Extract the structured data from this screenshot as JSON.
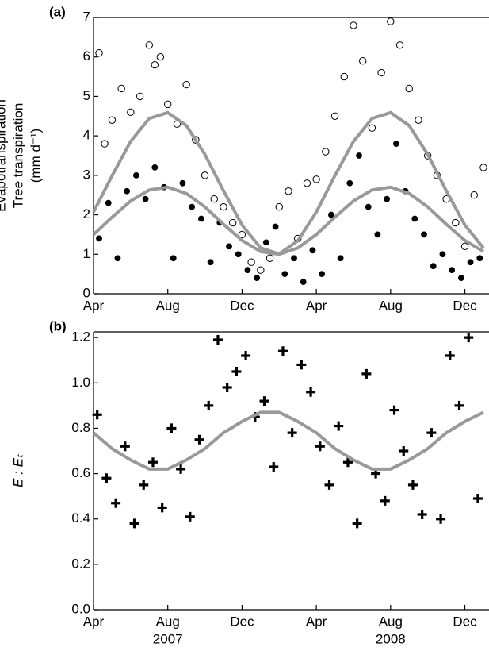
{
  "chart_data": [
    {
      "type": "scatter",
      "panel_label": "(a)",
      "y_label_lines": [
        "Evapotranspiration",
        "Tree transpiration",
        "(mm d⁻¹)"
      ],
      "xlim": [
        0,
        21.3
      ],
      "ylim": [
        0,
        7
      ],
      "xticks": [
        {
          "value": 0,
          "label": "Apr"
        },
        {
          "value": 4,
          "label": "Aug"
        },
        {
          "value": 8,
          "label": "Dec"
        },
        {
          "value": 12,
          "label": "Apr"
        },
        {
          "value": 16,
          "label": "Aug"
        },
        {
          "value": 20,
          "label": "Dec"
        }
      ],
      "yticks": [
        0,
        1,
        2,
        3,
        4,
        5,
        6,
        7
      ],
      "series": [
        {
          "marker": "open-circle",
          "color": "#000000",
          "x": [
            0.3,
            0.6,
            1.0,
            1.5,
            2.0,
            2.5,
            3.0,
            3.3,
            3.6,
            4.0,
            4.5,
            5.0,
            5.5,
            6.0,
            6.5,
            7.0,
            7.5,
            8.0,
            8.5,
            9.0,
            9.5,
            10.0,
            10.5,
            11.0,
            11.5,
            12.0,
            12.5,
            13.0,
            13.5,
            14.0,
            14.5,
            15.0,
            15.5,
            16.0,
            16.5,
            17.0,
            17.5,
            18.0,
            18.5,
            19.0,
            19.5,
            20.0,
            20.5,
            21.0
          ],
          "values": [
            6.1,
            3.8,
            4.4,
            5.2,
            4.6,
            5.0,
            6.3,
            5.8,
            6.0,
            4.8,
            4.3,
            5.3,
            3.9,
            3.0,
            2.4,
            2.2,
            1.8,
            1.5,
            0.8,
            0.6,
            0.9,
            2.2,
            2.6,
            1.4,
            2.8,
            2.9,
            3.6,
            4.5,
            5.5,
            6.8,
            5.9,
            4.2,
            5.6,
            6.9,
            6.3,
            5.2,
            4.4,
            3.5,
            3.0,
            2.4,
            1.8,
            1.2,
            2.5,
            3.2
          ]
        },
        {
          "marker": "filled-circle",
          "color": "#000000",
          "x": [
            0.3,
            0.8,
            1.3,
            1.8,
            2.3,
            2.8,
            3.3,
            3.8,
            4.3,
            4.8,
            5.3,
            5.8,
            6.3,
            6.8,
            7.3,
            7.8,
            8.3,
            8.8,
            9.3,
            9.8,
            10.3,
            10.8,
            11.3,
            11.8,
            12.3,
            12.8,
            13.3,
            13.8,
            14.3,
            14.8,
            15.3,
            15.8,
            16.3,
            16.8,
            17.3,
            17.8,
            18.3,
            18.8,
            19.3,
            19.8,
            20.3,
            20.8
          ],
          "values": [
            1.4,
            2.3,
            0.9,
            2.6,
            3.0,
            2.4,
            3.2,
            2.7,
            0.9,
            2.8,
            2.2,
            1.9,
            0.8,
            1.8,
            1.2,
            1.0,
            0.6,
            0.4,
            1.3,
            1.7,
            0.5,
            0.9,
            0.3,
            1.1,
            0.5,
            2.0,
            0.9,
            2.8,
            3.5,
            2.2,
            1.5,
            2.4,
            3.8,
            2.6,
            1.9,
            1.5,
            0.7,
            1.0,
            0.6,
            0.4,
            0.8,
            0.9
          ]
        },
        {
          "marker": "line",
          "color": "#999999",
          "x": [
            0,
            1,
            2,
            3,
            4,
            5,
            6,
            7,
            8,
            9,
            10,
            11,
            12,
            13,
            14,
            15,
            16,
            17,
            18,
            19,
            20,
            21
          ],
          "values": [
            2.07,
            2.99,
            3.86,
            4.44,
            4.59,
            4.26,
            3.53,
            2.61,
            1.74,
            1.16,
            1.01,
            1.34,
            2.07,
            2.99,
            3.86,
            4.44,
            4.59,
            4.26,
            3.53,
            2.61,
            1.74,
            1.16
          ]
        },
        {
          "marker": "line",
          "color": "#999999",
          "x": [
            0,
            1,
            2,
            3,
            4,
            5,
            6,
            7,
            8,
            9,
            10,
            11,
            12,
            13,
            14,
            15,
            16,
            17,
            18,
            19,
            20,
            21
          ],
          "values": [
            1.5,
            1.94,
            2.35,
            2.63,
            2.7,
            2.54,
            2.2,
            1.76,
            1.35,
            1.07,
            1.0,
            1.16,
            1.5,
            1.94,
            2.35,
            2.63,
            2.7,
            2.54,
            2.2,
            1.76,
            1.35,
            1.07
          ]
        }
      ]
    },
    {
      "type": "scatter",
      "panel_label": "(b)",
      "y_label_lines": [
        "E : Eₜ"
      ],
      "year_labels": [
        "2007",
        "2008"
      ],
      "xlim": [
        0,
        21.3
      ],
      "ylim": [
        0,
        1.225
      ],
      "xticks": [
        {
          "value": 0,
          "label": "Apr"
        },
        {
          "value": 4,
          "label": "Aug"
        },
        {
          "value": 8,
          "label": "Dec"
        },
        {
          "value": 12,
          "label": "Apr"
        },
        {
          "value": 16,
          "label": "Aug"
        },
        {
          "value": 20,
          "label": "Dec"
        }
      ],
      "yticks": [
        {
          "value": 0,
          "label": "0.0"
        },
        0.2,
        0.4,
        0.6,
        0.8,
        {
          "value": 1,
          "label": "1.0"
        },
        1.2
      ],
      "series": [
        {
          "marker": "cross",
          "color": "#000000",
          "x": [
            0.2,
            0.7,
            1.2,
            1.7,
            2.2,
            2.7,
            3.2,
            3.7,
            4.2,
            4.7,
            5.2,
            5.7,
            6.2,
            6.7,
            7.2,
            7.7,
            8.2,
            8.7,
            9.2,
            9.7,
            10.2,
            10.7,
            11.2,
            11.7,
            12.2,
            12.7,
            13.2,
            13.7,
            14.2,
            14.7,
            15.2,
            15.7,
            16.2,
            16.7,
            17.2,
            17.7,
            18.2,
            18.7,
            19.2,
            19.7,
            20.2,
            20.7
          ],
          "values": [
            0.86,
            0.58,
            0.47,
            0.72,
            0.38,
            0.55,
            0.65,
            0.45,
            0.8,
            0.62,
            0.41,
            0.75,
            0.9,
            1.19,
            0.98,
            1.05,
            1.12,
            0.85,
            0.92,
            0.63,
            1.14,
            0.78,
            1.08,
            0.96,
            0.72,
            0.55,
            0.81,
            0.65,
            0.38,
            1.04,
            0.6,
            0.48,
            0.88,
            0.7,
            0.55,
            0.42,
            0.78,
            0.4,
            1.12,
            0.9,
            1.2,
            0.49
          ]
        },
        {
          "marker": "line",
          "color": "#999999",
          "x": [
            0,
            1,
            2,
            3,
            4,
            5,
            6,
            7,
            8,
            9,
            10,
            11,
            12,
            13,
            14,
            15,
            16,
            17,
            18,
            19,
            20,
            21
          ],
          "values": [
            0.78,
            0.71,
            0.66,
            0.62,
            0.62,
            0.66,
            0.71,
            0.78,
            0.83,
            0.87,
            0.87,
            0.83,
            0.78,
            0.71,
            0.66,
            0.62,
            0.62,
            0.66,
            0.71,
            0.78,
            0.83,
            0.87
          ]
        }
      ]
    }
  ]
}
